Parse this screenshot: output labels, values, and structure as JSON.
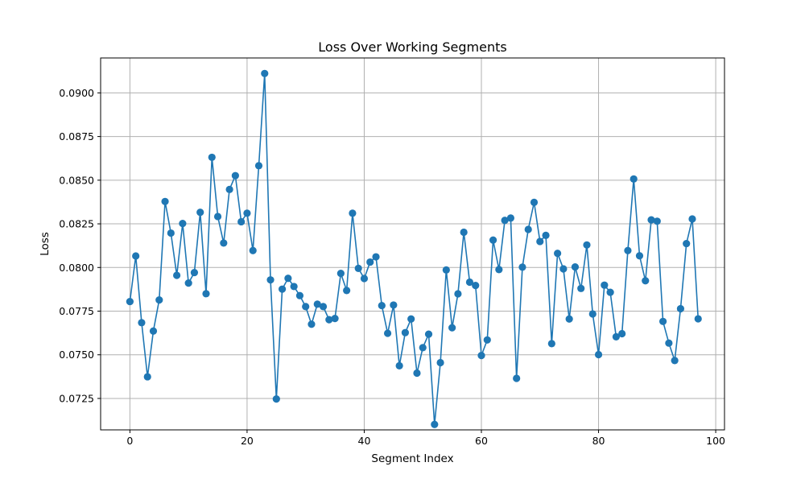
{
  "chart_data": {
    "type": "line",
    "title": "Loss Over Working Segments",
    "xlabel": "Segment Index",
    "ylabel": "Loss",
    "xlim": [
      -5,
      101.5
    ],
    "ylim": [
      0.0707,
      0.092
    ],
    "xticks": [
      0,
      20,
      40,
      60,
      80,
      100
    ],
    "yticks": [
      0.0725,
      0.075,
      0.0775,
      0.08,
      0.0825,
      0.085,
      0.0875,
      0.09
    ],
    "xtick_labels": [
      "0",
      "20",
      "40",
      "60",
      "80",
      "100"
    ],
    "ytick_labels": [
      "0.0725",
      "0.0750",
      "0.0775",
      "0.0800",
      "0.0825",
      "0.0850",
      "0.0875",
      "0.0900"
    ],
    "grid": true,
    "line_color": "#1f77b4",
    "marker": "circle",
    "series": [
      {
        "x": [
          0,
          1,
          2,
          3,
          4,
          5,
          6,
          7,
          8,
          9,
          10,
          11,
          12,
          13,
          14,
          15,
          16,
          17,
          18,
          19,
          20,
          21,
          22,
          23,
          24,
          25,
          26,
          27,
          28,
          29,
          30,
          31,
          32,
          33,
          34,
          35,
          36,
          37,
          38,
          39,
          40,
          41,
          42,
          43,
          44,
          45,
          46,
          47,
          48,
          49,
          50,
          51,
          52,
          53,
          54,
          55,
          56,
          57,
          58,
          59,
          60,
          61,
          62,
          63,
          64,
          65,
          66,
          67,
          68,
          69,
          70,
          71,
          72,
          73,
          74,
          75,
          76,
          77,
          78,
          79,
          80,
          81,
          82,
          83,
          84,
          85,
          86,
          87,
          88,
          89,
          90,
          91,
          92,
          93,
          94,
          95,
          96,
          97
        ],
        "values": [
          0.07805,
          0.08066,
          0.07684,
          0.07374,
          0.07636,
          0.07814,
          0.08378,
          0.08197,
          0.07955,
          0.08252,
          0.07911,
          0.07971,
          0.08316,
          0.0785,
          0.08631,
          0.08292,
          0.0814,
          0.08447,
          0.08526,
          0.08262,
          0.08311,
          0.08097,
          0.08583,
          0.09111,
          0.07929,
          0.07247,
          0.07876,
          0.07938,
          0.07891,
          0.07839,
          0.07776,
          0.07675,
          0.0779,
          0.07776,
          0.07701,
          0.07708,
          0.07966,
          0.07868,
          0.08311,
          0.07995,
          0.07937,
          0.08031,
          0.08061,
          0.07782,
          0.07623,
          0.07785,
          0.07437,
          0.07627,
          0.07705,
          0.07395,
          0.07541,
          0.07618,
          0.07101,
          0.07455,
          0.07986,
          0.07655,
          0.07849,
          0.08202,
          0.07916,
          0.07897,
          0.07496,
          0.07585,
          0.08157,
          0.07988,
          0.0827,
          0.08283,
          0.07365,
          0.08002,
          0.08218,
          0.08373,
          0.08149,
          0.08184,
          0.07564,
          0.08081,
          0.07992,
          0.07705,
          0.08003,
          0.0788,
          0.08129,
          0.07734,
          0.07501,
          0.07899,
          0.07858,
          0.07603,
          0.07621,
          0.08097,
          0.08507,
          0.08067,
          0.07924,
          0.08273,
          0.08265,
          0.07691,
          0.07567,
          0.07467,
          0.07764,
          0.08137,
          0.08278,
          0.07706
        ]
      }
    ]
  }
}
